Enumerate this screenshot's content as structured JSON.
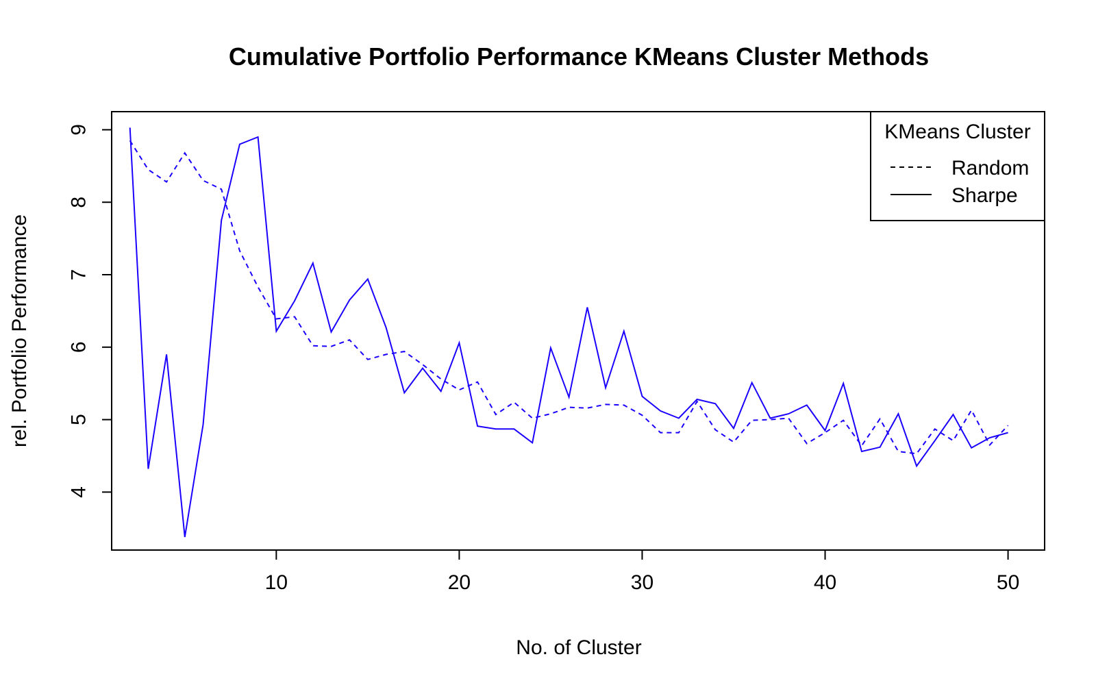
{
  "chart_data": {
    "type": "line",
    "title": "Cumulative Portfolio Performance KMeans Cluster Methods",
    "xlabel": "No. of Cluster",
    "ylabel": "rel. Portfolio Performance",
    "xlim": [
      1,
      52
    ],
    "ylim": [
      3.2,
      9.25
    ],
    "x_ticks": [
      10,
      20,
      30,
      40,
      50
    ],
    "y_ticks": [
      4,
      5,
      6,
      7,
      8,
      9
    ],
    "grid": false,
    "legend": {
      "title": "KMeans Cluster",
      "position": "top-right",
      "entries": [
        {
          "label": "Random",
          "style": "dashed"
        },
        {
          "label": "Sharpe",
          "style": "solid"
        }
      ]
    },
    "line_color": "#1a00ff",
    "x": [
      2,
      3,
      4,
      5,
      6,
      7,
      8,
      9,
      10,
      11,
      12,
      13,
      14,
      15,
      16,
      17,
      18,
      19,
      20,
      21,
      22,
      23,
      24,
      25,
      26,
      27,
      28,
      29,
      30,
      31,
      32,
      33,
      34,
      35,
      36,
      37,
      38,
      39,
      40,
      41,
      42,
      43,
      44,
      45,
      46,
      47,
      48,
      49,
      50
    ],
    "series": [
      {
        "name": "Random",
        "style": "dashed",
        "values": [
          8.85,
          8.45,
          8.28,
          8.68,
          8.3,
          8.18,
          7.33,
          6.83,
          6.39,
          6.42,
          6.02,
          6.01,
          6.1,
          5.83,
          5.9,
          5.94,
          5.76,
          5.56,
          5.41,
          5.52,
          5.07,
          5.24,
          5.02,
          5.08,
          5.17,
          5.16,
          5.21,
          5.2,
          5.06,
          4.82,
          4.82,
          5.25,
          4.86,
          4.69,
          4.99,
          5.0,
          5.02,
          4.67,
          4.82,
          4.99,
          4.64,
          5.01,
          4.56,
          4.53,
          4.87,
          4.71,
          5.13,
          4.65,
          4.92
        ]
      },
      {
        "name": "Sharpe",
        "style": "solid",
        "values": [
          9.03,
          4.32,
          5.9,
          3.38,
          4.93,
          7.75,
          8.8,
          8.9,
          6.22,
          6.64,
          7.16,
          6.21,
          6.65,
          6.94,
          6.27,
          5.37,
          5.71,
          5.39,
          6.06,
          4.91,
          4.87,
          4.87,
          4.68,
          5.99,
          5.31,
          6.55,
          5.44,
          6.22,
          5.32,
          5.12,
          5.02,
          5.28,
          5.22,
          4.88,
          5.51,
          5.02,
          5.08,
          5.2,
          4.85,
          5.5,
          4.56,
          4.62,
          5.08,
          4.36,
          4.71,
          5.07,
          4.61,
          4.75,
          4.82
        ]
      }
    ]
  }
}
